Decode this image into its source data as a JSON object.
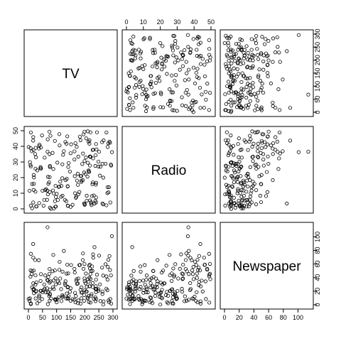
{
  "chart_data": {
    "type": "scatter",
    "kind": "scatterplot-matrix",
    "title": "",
    "variables": [
      {
        "name": "TV",
        "range": [
          0,
          300
        ],
        "ticks": [
          0,
          50,
          100,
          150,
          200,
          250,
          300
        ]
      },
      {
        "name": "Radio",
        "range": [
          0,
          50
        ],
        "ticks": [
          0,
          10,
          20,
          30,
          40,
          50
        ]
      },
      {
        "name": "Newspaper",
        "range": [
          0,
          115
        ],
        "ticks": [
          0,
          20,
          40,
          60,
          80,
          100
        ]
      }
    ],
    "point_marker": "open-circle",
    "observations": [
      [
        230.1,
        37.8,
        69.2
      ],
      [
        44.5,
        39.3,
        45.1
      ],
      [
        17.2,
        45.9,
        69.3
      ],
      [
        151.5,
        41.3,
        58.5
      ],
      [
        180.8,
        10.8,
        58.4
      ],
      [
        8.7,
        48.9,
        75.0
      ],
      [
        57.5,
        32.8,
        23.5
      ],
      [
        120.2,
        19.6,
        11.6
      ],
      [
        8.6,
        2.1,
        1.0
      ],
      [
        199.8,
        2.6,
        21.2
      ],
      [
        66.1,
        5.8,
        24.2
      ],
      [
        214.7,
        24.0,
        4.0
      ],
      [
        23.8,
        35.1,
        65.9
      ],
      [
        97.5,
        7.6,
        7.2
      ],
      [
        204.1,
        32.9,
        46.0
      ],
      [
        195.4,
        47.7,
        52.9
      ],
      [
        67.8,
        36.6,
        114.0
      ],
      [
        281.4,
        39.6,
        55.8
      ],
      [
        69.2,
        20.5,
        18.3
      ],
      [
        147.3,
        23.9,
        19.1
      ],
      [
        218.4,
        27.7,
        53.4
      ],
      [
        237.4,
        5.1,
        23.5
      ],
      [
        13.2,
        15.9,
        49.6
      ],
      [
        228.3,
        16.9,
        26.2
      ],
      [
        62.3,
        12.6,
        18.3
      ],
      [
        262.9,
        3.5,
        19.5
      ],
      [
        142.9,
        29.3,
        12.6
      ],
      [
        240.1,
        16.7,
        22.9
      ],
      [
        248.8,
        27.1,
        22.9
      ],
      [
        70.6,
        16.0,
        40.8
      ],
      [
        292.9,
        28.3,
        43.2
      ],
      [
        112.9,
        17.4,
        38.6
      ],
      [
        97.2,
        1.5,
        30.0
      ],
      [
        265.6,
        20.0,
        0.3
      ],
      [
        95.7,
        1.4,
        7.4
      ],
      [
        290.7,
        4.1,
        8.5
      ],
      [
        266.9,
        43.8,
        5.0
      ],
      [
        74.7,
        49.4,
        45.7
      ],
      [
        43.1,
        26.7,
        35.1
      ],
      [
        228.0,
        37.7,
        32.0
      ],
      [
        202.5,
        22.3,
        31.6
      ],
      [
        177.0,
        33.4,
        38.7
      ],
      [
        293.6,
        27.7,
        1.8
      ],
      [
        206.9,
        8.4,
        26.4
      ],
      [
        25.1,
        25.7,
        43.3
      ],
      [
        175.1,
        22.5,
        31.5
      ],
      [
        89.7,
        9.9,
        35.7
      ],
      [
        239.9,
        41.5,
        18.5
      ],
      [
        227.2,
        15.8,
        49.9
      ],
      [
        66.9,
        11.7,
        36.8
      ],
      [
        199.8,
        3.1,
        34.6
      ],
      [
        100.4,
        9.6,
        3.6
      ],
      [
        216.4,
        41.7,
        39.6
      ],
      [
        182.6,
        46.2,
        58.7
      ],
      [
        262.7,
        28.8,
        15.9
      ],
      [
        198.9,
        49.4,
        60.0
      ],
      [
        7.3,
        28.1,
        41.4
      ],
      [
        136.2,
        19.2,
        16.6
      ],
      [
        210.8,
        49.6,
        37.7
      ],
      [
        210.7,
        29.5,
        9.3
      ],
      [
        53.5,
        2.0,
        21.4
      ],
      [
        261.3,
        42.7,
        54.7
      ],
      [
        239.3,
        15.5,
        27.3
      ],
      [
        102.7,
        29.6,
        8.4
      ],
      [
        131.1,
        42.8,
        28.9
      ],
      [
        69.0,
        9.3,
        0.9
      ],
      [
        31.5,
        24.6,
        2.2
      ],
      [
        139.3,
        14.5,
        10.2
      ],
      [
        237.4,
        27.5,
        11.0
      ],
      [
        216.8,
        43.9,
        27.2
      ],
      [
        199.1,
        30.6,
        38.7
      ],
      [
        109.8,
        14.3,
        31.7
      ],
      [
        26.8,
        33.0,
        19.3
      ],
      [
        129.4,
        5.7,
        31.3
      ],
      [
        213.4,
        24.6,
        13.1
      ],
      [
        16.9,
        43.7,
        89.4
      ],
      [
        27.5,
        1.6,
        20.7
      ],
      [
        120.5,
        28.5,
        14.2
      ],
      [
        5.4,
        29.9,
        9.4
      ],
      [
        116.0,
        7.7,
        23.1
      ],
      [
        76.4,
        26.7,
        22.3
      ],
      [
        239.8,
        4.1,
        36.9
      ],
      [
        75.3,
        20.3,
        32.5
      ],
      [
        68.4,
        44.5,
        35.6
      ],
      [
        213.5,
        43.0,
        33.8
      ],
      [
        193.2,
        18.4,
        65.7
      ],
      [
        76.3,
        27.5,
        16.0
      ],
      [
        110.7,
        40.6,
        63.2
      ],
      [
        88.3,
        25.5,
        73.4
      ],
      [
        109.8,
        47.8,
        51.4
      ],
      [
        134.3,
        4.9,
        9.3
      ],
      [
        28.6,
        1.5,
        33.0
      ],
      [
        217.7,
        33.5,
        59.0
      ],
      [
        250.9,
        36.5,
        72.3
      ],
      [
        107.4,
        14.0,
        10.9
      ],
      [
        163.3,
        31.6,
        52.9
      ],
      [
        197.6,
        3.5,
        5.9
      ],
      [
        184.9,
        21.0,
        22.0
      ],
      [
        289.7,
        42.3,
        51.2
      ],
      [
        135.2,
        41.7,
        45.9
      ],
      [
        222.4,
        4.3,
        49.8
      ],
      [
        296.4,
        36.3,
        100.9
      ],
      [
        280.2,
        10.1,
        21.4
      ],
      [
        187.9,
        17.2,
        17.9
      ],
      [
        238.2,
        34.3,
        5.3
      ],
      [
        137.9,
        46.4,
        59.0
      ],
      [
        25.0,
        11.0,
        29.7
      ],
      [
        90.4,
        0.3,
        23.2
      ],
      [
        13.1,
        0.4,
        25.6
      ],
      [
        255.4,
        26.9,
        5.5
      ],
      [
        225.8,
        8.2,
        56.5
      ],
      [
        241.7,
        38.0,
        23.2
      ],
      [
        175.7,
        15.4,
        2.4
      ],
      [
        209.6,
        20.6,
        10.7
      ],
      [
        78.2,
        46.8,
        34.5
      ],
      [
        75.1,
        35.0,
        52.7
      ],
      [
        139.2,
        14.3,
        25.6
      ],
      [
        76.4,
        0.8,
        14.8
      ],
      [
        125.7,
        36.9,
        79.2
      ],
      [
        19.4,
        16.0,
        22.3
      ],
      [
        141.3,
        26.8,
        46.2
      ],
      [
        18.8,
        21.7,
        50.4
      ],
      [
        224.0,
        2.4,
        15.6
      ],
      [
        123.1,
        34.6,
        12.4
      ],
      [
        229.5,
        32.3,
        74.2
      ],
      [
        87.2,
        11.8,
        25.9
      ],
      [
        7.8,
        38.9,
        50.6
      ],
      [
        80.2,
        0.0,
        9.2
      ],
      [
        220.3,
        49.0,
        3.2
      ],
      [
        59.6,
        12.0,
        43.1
      ],
      [
        0.7,
        39.6,
        8.7
      ],
      [
        265.2,
        2.9,
        43.0
      ],
      [
        8.4,
        27.2,
        2.1
      ],
      [
        219.8,
        33.5,
        45.1
      ],
      [
        36.9,
        38.6,
        65.6
      ],
      [
        48.3,
        47.0,
        8.5
      ],
      [
        25.6,
        39.0,
        9.3
      ],
      [
        273.7,
        28.9,
        59.7
      ],
      [
        43.0,
        25.9,
        20.5
      ],
      [
        184.9,
        43.9,
        1.7
      ],
      [
        73.4,
        17.0,
        12.9
      ],
      [
        193.7,
        35.4,
        75.6
      ],
      [
        220.5,
        33.2,
        37.9
      ],
      [
        104.6,
        5.7,
        34.4
      ],
      [
        96.2,
        14.8,
        38.9
      ],
      [
        140.3,
        1.9,
        9.0
      ],
      [
        240.1,
        7.3,
        8.7
      ],
      [
        243.2,
        49.0,
        44.3
      ],
      [
        38.0,
        40.3,
        11.9
      ],
      [
        44.7,
        25.8,
        20.6
      ],
      [
        280.7,
        13.9,
        37.0
      ],
      [
        121.0,
        8.4,
        48.7
      ],
      [
        197.6,
        23.3,
        14.2
      ],
      [
        171.3,
        39.7,
        37.7
      ],
      [
        187.8,
        21.1,
        9.5
      ],
      [
        4.1,
        11.6,
        5.7
      ],
      [
        93.9,
        43.5,
        50.5
      ],
      [
        149.8,
        1.3,
        24.3
      ],
      [
        11.7,
        36.9,
        45.2
      ],
      [
        131.7,
        18.4,
        34.6
      ],
      [
        172.5,
        18.1,
        30.7
      ],
      [
        85.7,
        35.8,
        49.3
      ],
      [
        188.4,
        18.1,
        25.6
      ],
      [
        163.5,
        36.8,
        7.4
      ],
      [
        117.2,
        14.7,
        5.4
      ],
      [
        234.5,
        3.4,
        84.8
      ],
      [
        17.9,
        37.6,
        21.6
      ],
      [
        206.8,
        5.2,
        19.4
      ],
      [
        215.4,
        23.6,
        57.6
      ],
      [
        284.3,
        10.6,
        6.4
      ],
      [
        50.0,
        11.6,
        18.4
      ],
      [
        164.5,
        20.9,
        47.4
      ],
      [
        19.6,
        20.1,
        17.0
      ],
      [
        168.4,
        7.1,
        12.8
      ],
      [
        222.4,
        3.4,
        13.1
      ],
      [
        276.9,
        48.9,
        41.8
      ],
      [
        248.4,
        30.2,
        20.3
      ],
      [
        170.2,
        7.8,
        35.2
      ],
      [
        276.7,
        2.3,
        23.7
      ],
      [
        165.6,
        10.0,
        17.6
      ],
      [
        156.6,
        2.6,
        8.3
      ],
      [
        218.5,
        5.4,
        27.4
      ],
      [
        56.2,
        5.7,
        29.7
      ],
      [
        287.6,
        43.0,
        71.8
      ],
      [
        253.8,
        21.3,
        30.0
      ],
      [
        205.0,
        45.1,
        19.6
      ],
      [
        139.5,
        2.1,
        26.6
      ],
      [
        191.1,
        28.7,
        18.2
      ],
      [
        286.0,
        13.9,
        3.7
      ],
      [
        18.7,
        12.1,
        23.4
      ],
      [
        39.5,
        41.1,
        5.8
      ],
      [
        75.5,
        10.8,
        6.0
      ],
      [
        17.2,
        4.1,
        31.6
      ],
      [
        166.8,
        42.0,
        3.6
      ],
      [
        149.7,
        35.6,
        6.0
      ],
      [
        38.2,
        3.7,
        13.8
      ],
      [
        94.2,
        4.9,
        8.1
      ],
      [
        177.0,
        9.3,
        6.4
      ],
      [
        283.6,
        42.0,
        66.2
      ],
      [
        232.1,
        8.6,
        8.7
      ]
    ]
  }
}
